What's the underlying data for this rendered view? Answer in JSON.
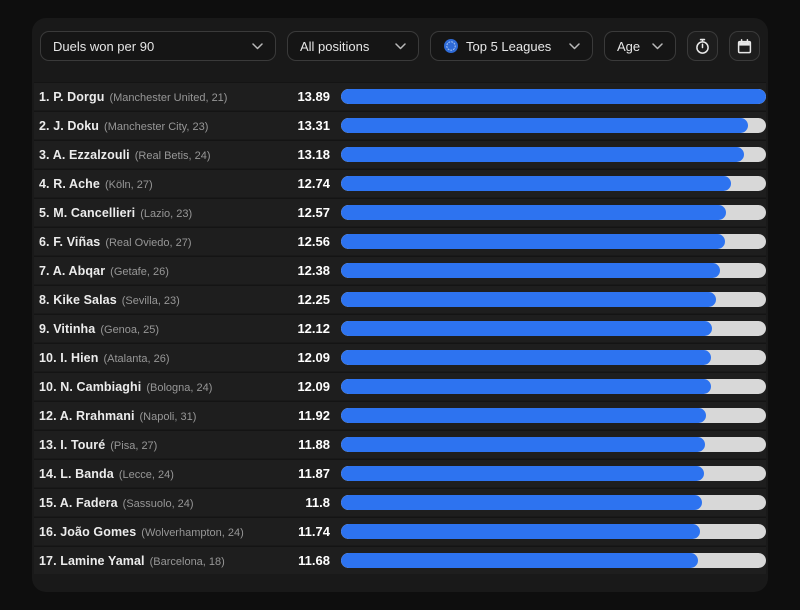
{
  "header": {
    "metric_dropdown": {
      "label": "Duels won per 90"
    },
    "position_dropdown": {
      "label": "All positions"
    },
    "league_dropdown": {
      "label": "Top 5 Leagues"
    },
    "age_dropdown": {
      "label": "Age"
    }
  },
  "colors": {
    "bar_fill": "#2d73f0",
    "bar_track": "#d8d8d8",
    "league_icon_blue": "#2f6bd8",
    "panel_bg": "#191919",
    "row_bg": "#1e1e1e"
  },
  "chart_data": {
    "type": "bar",
    "orientation": "horizontal",
    "title": "Duels won per 90",
    "value_range": [
      0,
      13.89
    ],
    "bar_scale_max": 13.89,
    "legend": "none",
    "rows": [
      {
        "rank": "1.",
        "name": "P. Dorgu",
        "detail": "(Manchester United, 21)",
        "value": 13.89,
        "value_label": "13.89"
      },
      {
        "rank": "2.",
        "name": "J. Doku",
        "detail": "(Manchester City, 23)",
        "value": 13.31,
        "value_label": "13.31"
      },
      {
        "rank": "3.",
        "name": "A. Ezzalzouli",
        "detail": "(Real Betis, 24)",
        "value": 13.18,
        "value_label": "13.18"
      },
      {
        "rank": "4.",
        "name": "R. Ache",
        "detail": "(Köln, 27)",
        "value": 12.74,
        "value_label": "12.74"
      },
      {
        "rank": "5.",
        "name": "M. Cancellieri",
        "detail": "(Lazio, 23)",
        "value": 12.57,
        "value_label": "12.57"
      },
      {
        "rank": "6.",
        "name": "F. Viñas",
        "detail": "(Real Oviedo, 27)",
        "value": 12.56,
        "value_label": "12.56"
      },
      {
        "rank": "7.",
        "name": "A. Abqar",
        "detail": "(Getafe, 26)",
        "value": 12.38,
        "value_label": "12.38"
      },
      {
        "rank": "8.",
        "name": "Kike Salas",
        "detail": "(Sevilla, 23)",
        "value": 12.25,
        "value_label": "12.25"
      },
      {
        "rank": "9.",
        "name": "Vitinha",
        "detail": "(Genoa, 25)",
        "value": 12.12,
        "value_label": "12.12"
      },
      {
        "rank": "10.",
        "name": "I. Hien",
        "detail": "(Atalanta, 26)",
        "value": 12.09,
        "value_label": "12.09"
      },
      {
        "rank": "10.",
        "name": "N. Cambiaghi",
        "detail": "(Bologna, 24)",
        "value": 12.09,
        "value_label": "12.09"
      },
      {
        "rank": "12.",
        "name": "A. Rrahmani",
        "detail": "(Napoli, 31)",
        "value": 11.92,
        "value_label": "11.92"
      },
      {
        "rank": "13.",
        "name": "I. Touré",
        "detail": "(Pisa, 27)",
        "value": 11.88,
        "value_label": "11.88"
      },
      {
        "rank": "14.",
        "name": "L. Banda",
        "detail": "(Lecce, 24)",
        "value": 11.87,
        "value_label": "11.87"
      },
      {
        "rank": "15.",
        "name": "A. Fadera",
        "detail": "(Sassuolo, 24)",
        "value": 11.8,
        "value_label": "11.8"
      },
      {
        "rank": "16.",
        "name": "João Gomes",
        "detail": "(Wolverhampton, 24)",
        "value": 11.74,
        "value_label": "11.74"
      },
      {
        "rank": "17.",
        "name": "Lamine Yamal",
        "detail": "(Barcelona, 18)",
        "value": 11.68,
        "value_label": "11.68"
      }
    ]
  }
}
